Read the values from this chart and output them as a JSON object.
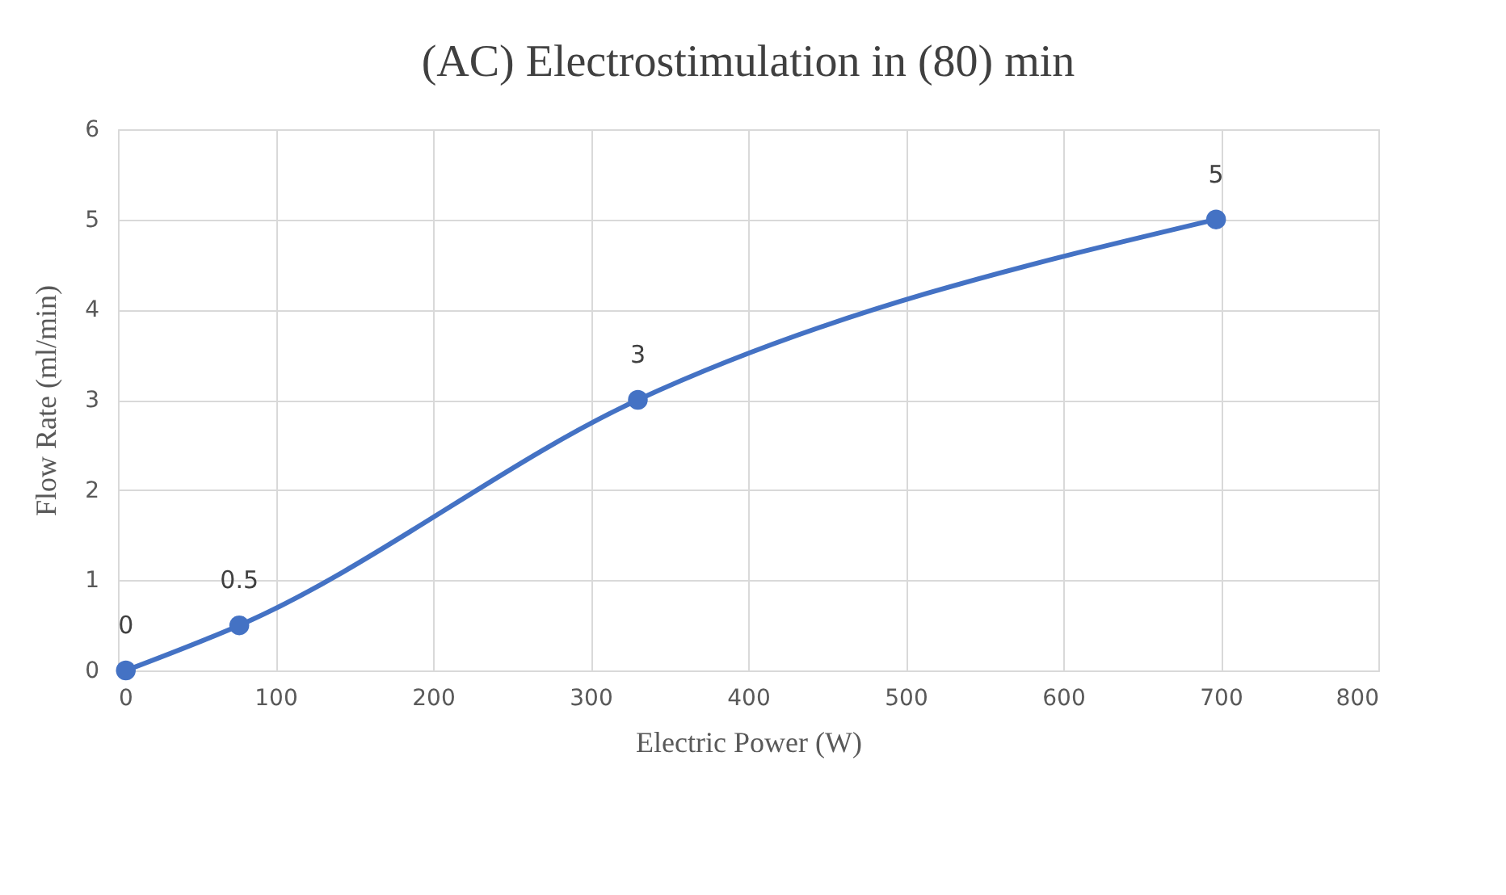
{
  "chart_data": {
    "type": "line",
    "title": "(AC) Electrostimulation in (80) min",
    "xlabel": "Electric Power (W)",
    "ylabel": "Flow Rate (ml/min)",
    "x": [
      5,
      77,
      330,
      697
    ],
    "series": [
      {
        "color": "#4472c4",
        "values": [
          0,
          0.5,
          3,
          5
        ]
      }
    ],
    "xlim": [
      0,
      800
    ],
    "xticks": [
      0,
      100,
      200,
      300,
      400,
      500,
      600,
      700,
      800
    ],
    "ylim": [
      0,
      6
    ],
    "yticks": [
      0,
      1,
      2,
      3,
      4,
      5,
      6
    ],
    "grid": true,
    "marker": "circle",
    "line_style": "solid",
    "data_labels": true
  }
}
